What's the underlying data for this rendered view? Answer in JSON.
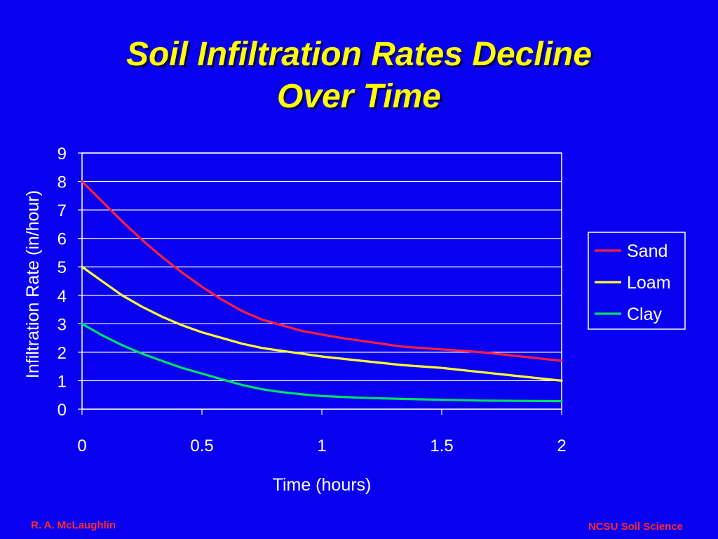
{
  "slide": {
    "title_line1": "Soil Infiltration Rates Decline",
    "title_line2": "Over Time",
    "footer_left": "R. A. McLaughlin",
    "footer_right": "NCSU Soil Science"
  },
  "colors": {
    "background": "#0a00f0",
    "title": "#ffff00",
    "footer": "#ff2a2a",
    "axis_text": "#ffffff"
  },
  "chart_data": {
    "type": "line",
    "title": "",
    "xlabel": "Time (hours)",
    "ylabel": "Infiltration Rate (in/hour)",
    "xlim": [
      0,
      2
    ],
    "ylim": [
      0,
      9
    ],
    "xticks": [
      0,
      0.5,
      1,
      1.5,
      2
    ],
    "xtick_labels": [
      "0",
      "0.5",
      "1",
      "1.5",
      "2"
    ],
    "yticks": [
      0,
      1,
      2,
      3,
      4,
      5,
      6,
      7,
      8,
      9
    ],
    "ytick_labels": [
      "0",
      "1",
      "2",
      "3",
      "4",
      "5",
      "6",
      "7",
      "8",
      "9"
    ],
    "grid": "horizontal",
    "legend_position": "right",
    "series": [
      {
        "name": "Sand",
        "color": "#ff1e3c",
        "x": [
          0,
          0.083,
          0.167,
          0.25,
          0.333,
          0.417,
          0.5,
          0.583,
          0.667,
          0.75,
          0.833,
          0.917,
          1,
          1.083,
          1.167,
          1.25,
          1.333,
          1.5,
          1.667,
          1.833,
          2
        ],
        "y": [
          8,
          7.3,
          6.6,
          5.95,
          5.35,
          4.8,
          4.3,
          3.85,
          3.45,
          3.15,
          2.95,
          2.75,
          2.62,
          2.5,
          2.4,
          2.3,
          2.2,
          2.1,
          2.0,
          1.85,
          1.7
        ]
      },
      {
        "name": "Loam",
        "color": "#ffff33",
        "x": [
          0,
          0.083,
          0.167,
          0.25,
          0.333,
          0.417,
          0.5,
          0.583,
          0.667,
          0.75,
          0.833,
          0.917,
          1,
          1.167,
          1.333,
          1.5,
          1.667,
          1.833,
          2
        ],
        "y": [
          5,
          4.5,
          4.0,
          3.6,
          3.25,
          2.95,
          2.7,
          2.5,
          2.3,
          2.15,
          2.05,
          1.95,
          1.85,
          1.7,
          1.55,
          1.45,
          1.3,
          1.15,
          1.0
        ]
      },
      {
        "name": "Clay",
        "color": "#00e060",
        "x": [
          0,
          0.083,
          0.167,
          0.25,
          0.333,
          0.417,
          0.5,
          0.583,
          0.667,
          0.75,
          0.833,
          0.917,
          1,
          1.167,
          1.333,
          1.5,
          1.667,
          1.833,
          2
        ],
        "y": [
          3,
          2.6,
          2.25,
          1.95,
          1.7,
          1.45,
          1.25,
          1.05,
          0.85,
          0.7,
          0.6,
          0.52,
          0.46,
          0.4,
          0.36,
          0.33,
          0.3,
          0.29,
          0.28
        ]
      }
    ]
  }
}
